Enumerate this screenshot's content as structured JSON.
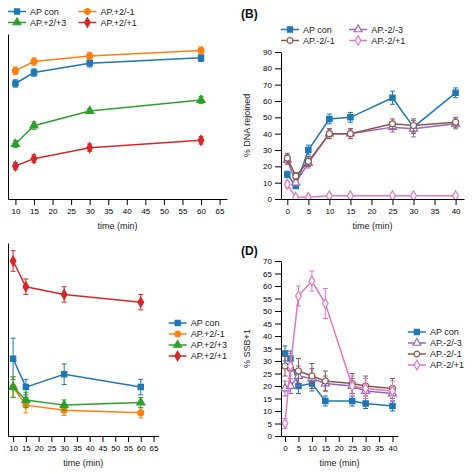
{
  "chart_data": [
    {
      "type": "line",
      "xlabel": "time (min)",
      "x": [
        10,
        15,
        30,
        60
      ],
      "xlim": [
        8,
        67
      ],
      "ylim": [
        0,
        90
      ],
      "xticks": [
        10,
        15,
        20,
        25,
        30,
        35,
        40,
        45,
        50,
        55,
        60,
        65
      ],
      "tick_labels": "x",
      "legend": "upper left",
      "series": [
        {
          "name": "AP con",
          "marker": "square",
          "values": [
            63,
            69,
            74,
            77
          ],
          "errors": [
            2,
            2,
            2,
            2
          ]
        },
        {
          "name": "AP.+2/-1",
          "marker": "circle",
          "values": [
            70,
            75,
            78,
            81
          ],
          "errors": [
            2,
            2,
            2,
            2
          ]
        },
        {
          "name": "AP.+2/+3",
          "marker": "triangle",
          "values": [
            30,
            40,
            48,
            54
          ],
          "errors": [
            2,
            2,
            1,
            2
          ]
        },
        {
          "name": "AP.+2/+1",
          "marker": "diamond",
          "values": [
            18,
            22,
            28,
            32
          ],
          "errors": [
            2,
            2,
            2,
            2
          ]
        }
      ]
    },
    {
      "type": "line",
      "title": "(B)",
      "xlabel": "time (min)",
      "ylabel": "% DNA rejoined",
      "x": [
        0,
        2,
        5,
        10,
        15,
        25,
        30,
        40
      ],
      "xlim": [
        -1.5,
        42
      ],
      "ylim": [
        0,
        90
      ],
      "xticks": [
        0,
        5,
        10,
        15,
        20,
        25,
        30,
        35,
        40
      ],
      "yticks": [
        0,
        10,
        20,
        30,
        40,
        50,
        60,
        70,
        80,
        90
      ],
      "legend": "upper left",
      "series": [
        {
          "name": "AP con",
          "marker": "square",
          "values": [
            15,
            8,
            30,
            49,
            50,
            62,
            44,
            65
          ],
          "errors": [
            2,
            1,
            3,
            3,
            3,
            4,
            4,
            3
          ]
        },
        {
          "name": "AP.-2/-3",
          "marker": "open-triangle",
          "values": [
            24,
            10,
            22,
            40,
            40,
            44,
            43,
            46
          ],
          "errors": [
            3,
            2,
            3,
            3,
            3,
            3,
            5,
            3
          ]
        },
        {
          "name": "AP.-2/-1",
          "marker": "open-circle",
          "values": [
            25,
            14,
            23,
            40,
            40,
            46,
            45,
            47
          ],
          "errors": [
            3,
            2,
            3,
            3,
            3,
            3,
            4,
            3
          ]
        },
        {
          "name": "AP.-2/+1",
          "marker": "open-diamond",
          "values": [
            9,
            1,
            1,
            2,
            2,
            2,
            2,
            2
          ],
          "errors": [
            2,
            1,
            1,
            1,
            1,
            1,
            1,
            1
          ]
        }
      ]
    },
    {
      "type": "line",
      "xlabel": "time (min)",
      "x": [
        10,
        15,
        30,
        60
      ],
      "xlim": [
        8,
        67
      ],
      "ylim": [
        0,
        75
      ],
      "xticks": [
        10,
        15,
        20,
        25,
        30,
        35,
        40,
        45,
        50,
        55,
        60,
        65
      ],
      "tick_labels": "x",
      "legend": "center right",
      "series": [
        {
          "name": "AP con",
          "marker": "square",
          "values": [
            30,
            19,
            24,
            19
          ],
          "errors": [
            8,
            3,
            4,
            3
          ]
        },
        {
          "name": "AP.+2/-1",
          "marker": "circle",
          "values": [
            19,
            12,
            10,
            9
          ],
          "errors": [
            4,
            3,
            2,
            2
          ]
        },
        {
          "name": "AP.+2/+3",
          "marker": "triangle",
          "values": [
            19,
            14,
            12,
            13
          ],
          "errors": [
            4,
            3,
            2,
            2
          ]
        },
        {
          "name": "AP.+2/+1",
          "marker": "diamond",
          "values": [
            68,
            58,
            55,
            52
          ],
          "errors": [
            4,
            3,
            3,
            3
          ]
        }
      ]
    },
    {
      "type": "line",
      "title": "(D)",
      "xlabel": "time (min)",
      "ylabel": "% SSB+1",
      "x": [
        0,
        2,
        5,
        10,
        15,
        25,
        30,
        40
      ],
      "xlim": [
        -1.5,
        42
      ],
      "ylim": [
        0,
        70
      ],
      "xticks": [
        0,
        5,
        10,
        15,
        20,
        25,
        30,
        35,
        40
      ],
      "yticks": [
        0,
        5,
        10,
        15,
        20,
        25,
        30,
        35,
        40,
        45,
        50,
        55,
        60,
        65,
        70
      ],
      "legend": "center right",
      "series": [
        {
          "name": "AP con",
          "marker": "square",
          "values": [
            33,
            31,
            20,
            21,
            14,
            14,
            13,
            12
          ],
          "errors": [
            3,
            3,
            3,
            3,
            2,
            2,
            2,
            2
          ]
        },
        {
          "name": "AP.-2/-3",
          "marker": "open-triangle",
          "values": [
            19,
            20,
            24,
            23,
            21,
            20,
            18,
            17
          ],
          "errors": [
            3,
            3,
            4,
            4,
            3,
            3,
            3,
            3
          ]
        },
        {
          "name": "AP.-2/-1",
          "marker": "open-circle",
          "values": [
            28,
            27,
            26,
            24,
            22,
            21,
            20,
            19
          ],
          "errors": [
            4,
            4,
            5,
            5,
            4,
            4,
            4,
            4
          ]
        },
        {
          "name": "AP.-2/+1",
          "marker": "open-diamond",
          "values": [
            5,
            28,
            56,
            62,
            53,
            20,
            19,
            18
          ],
          "errors": [
            2,
            5,
            4,
            4,
            6,
            4,
            4,
            4
          ]
        }
      ]
    }
  ]
}
